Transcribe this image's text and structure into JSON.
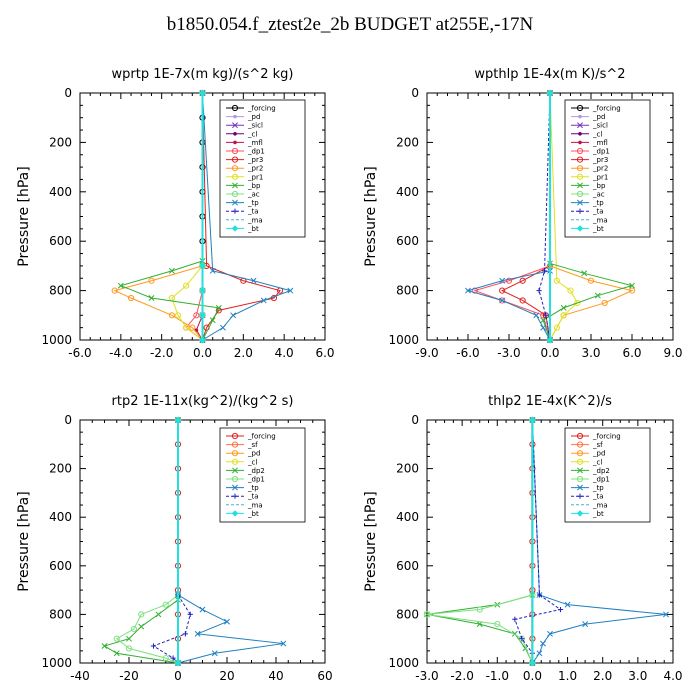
{
  "title": "b1850.054.f_ztest2e_2b  BUDGET at255E,-17N",
  "chart_data": [
    {
      "type": "line",
      "title": "wprtp  1E-7x(m kg)/(s^2 kg)",
      "ylabel": "Pressure [hPa]",
      "xlim": [
        -6,
        6
      ],
      "ylim": [
        1000,
        0
      ],
      "xticks": [
        "-6.0",
        "-4.0",
        "-2.0",
        "0.0",
        "2.0",
        "4.0",
        "6.0"
      ],
      "yticks": [
        "0",
        "200",
        "400",
        "600",
        "800",
        "1000"
      ],
      "series": [
        {
          "name": "_forcing",
          "color": "#000000",
          "marker": "circle",
          "y": [
            0,
            100,
            200,
            300,
            400,
            500,
            600,
            700,
            800,
            900,
            1000
          ],
          "x": [
            0,
            0,
            0,
            0,
            0,
            0,
            0,
            0,
            0,
            0,
            0
          ]
        },
        {
          "name": "_pd",
          "color": "#b89ae0",
          "marker": "dot",
          "y": [
            0,
            700,
            800,
            900,
            1000
          ],
          "x": [
            0,
            0,
            0,
            0,
            0
          ]
        },
        {
          "name": "_sicl",
          "color": "#7030c0",
          "marker": "x",
          "y": [
            0,
            700,
            800,
            900,
            1000
          ],
          "x": [
            0,
            0,
            0,
            0,
            0
          ]
        },
        {
          "name": "_cl",
          "color": "#6a007a",
          "marker": "dot",
          "y": [
            0,
            700,
            800,
            900,
            1000
          ],
          "x": [
            0,
            0,
            0,
            0,
            0
          ]
        },
        {
          "name": "_mfl",
          "color": "#c0104a",
          "marker": "dot",
          "y": [
            0,
            700,
            800,
            900,
            960,
            1000
          ],
          "x": [
            0,
            0,
            0,
            0,
            -0.3,
            0
          ]
        },
        {
          "name": "_dp1",
          "color": "#ff5060",
          "marker": "circle",
          "y": [
            0,
            700,
            800,
            900,
            950,
            1000
          ],
          "x": [
            0,
            0,
            0,
            -0.3,
            -0.8,
            0
          ]
        },
        {
          "name": "_pr3",
          "color": "#e02020",
          "marker": "circle",
          "y": [
            0,
            700,
            760,
            800,
            830,
            880,
            950,
            1000
          ],
          "x": [
            0,
            0.2,
            2.0,
            3.8,
            3.5,
            0.8,
            0.2,
            0
          ]
        },
        {
          "name": "_pr2",
          "color": "#ff9a20",
          "marker": "circle",
          "y": [
            0,
            700,
            760,
            800,
            830,
            900,
            950,
            1000
          ],
          "x": [
            0,
            0,
            -2.5,
            -4.3,
            -3.5,
            -1.5,
            -0.5,
            0
          ]
        },
        {
          "name": "_pr1",
          "color": "#e0e020",
          "marker": "circle",
          "y": [
            0,
            700,
            780,
            830,
            900,
            950,
            1000
          ],
          "x": [
            0,
            0,
            -0.8,
            -1.5,
            -1.2,
            -0.8,
            0
          ]
        },
        {
          "name": "_bp",
          "color": "#30b030",
          "marker": "x",
          "y": [
            0,
            680,
            720,
            780,
            830,
            870,
            920,
            1000
          ],
          "x": [
            0,
            0,
            -1.5,
            -4.0,
            -2.5,
            0.8,
            0.5,
            0
          ]
        },
        {
          "name": "_ac",
          "color": "#80e080",
          "marker": "circle",
          "y": [
            0,
            700,
            800,
            900,
            1000
          ],
          "x": [
            0,
            0,
            0,
            0,
            0
          ]
        },
        {
          "name": "_tp",
          "color": "#2080c0",
          "marker": "x",
          "y": [
            0,
            720,
            760,
            800,
            840,
            900,
            950,
            1000
          ],
          "x": [
            0,
            0.5,
            2.5,
            4.3,
            3.0,
            1.5,
            1.0,
            0
          ]
        },
        {
          "name": "_ta",
          "color": "#2020c0",
          "marker": "plus",
          "y": [
            0,
            700,
            800,
            900,
            1000
          ],
          "x": [
            0,
            0,
            0,
            0,
            0
          ]
        },
        {
          "name": "_ma",
          "color": "#4ab0d0",
          "marker": "none",
          "y": [
            0,
            700,
            800,
            900,
            1000
          ],
          "x": [
            0,
            0,
            0,
            0,
            0
          ]
        },
        {
          "name": "_bt",
          "color": "#20e0e0",
          "marker": "diamond",
          "y": [
            0,
            700,
            800,
            900,
            1000
          ],
          "x": [
            0,
            0,
            0,
            0,
            0
          ]
        }
      ]
    },
    {
      "type": "line",
      "title": "wpthlp  1E-4x(m K)/s^2",
      "ylabel": "Pressure [hPa]",
      "xlim": [
        -9,
        9
      ],
      "ylim": [
        1000,
        0
      ],
      "xticks": [
        "-9.0",
        "-6.0",
        "-3.0",
        "0.0",
        "3.0",
        "6.0",
        "9.0"
      ],
      "yticks": [
        "0",
        "200",
        "400",
        "600",
        "800",
        "1000"
      ],
      "series": [
        {
          "name": "_forcing",
          "color": "#000000",
          "marker": "circle",
          "y": [
            0,
            1000
          ],
          "x": [
            0,
            0
          ]
        },
        {
          "name": "_pd",
          "color": "#b89ae0",
          "marker": "dot",
          "y": [
            0,
            1000
          ],
          "x": [
            0,
            0
          ]
        },
        {
          "name": "_sicl",
          "color": "#7030c0",
          "marker": "x",
          "y": [
            0,
            1000
          ],
          "x": [
            0,
            0
          ]
        },
        {
          "name": "_cl",
          "color": "#6a007a",
          "marker": "dot",
          "y": [
            0,
            1000
          ],
          "x": [
            0,
            0
          ]
        },
        {
          "name": "_mfl",
          "color": "#c0104a",
          "marker": "dot",
          "y": [
            0,
            1000
          ],
          "x": [
            0,
            0
          ]
        },
        {
          "name": "_dp1",
          "color": "#ff5060",
          "marker": "circle",
          "y": [
            0,
            700,
            760,
            800,
            840,
            900,
            1000
          ],
          "x": [
            0,
            0,
            -3.0,
            -5.5,
            -3.5,
            -0.5,
            0
          ]
        },
        {
          "name": "_pr3",
          "color": "#e02020",
          "marker": "circle",
          "y": [
            0,
            700,
            760,
            800,
            840,
            900,
            1000
          ],
          "x": [
            0,
            0,
            -2.0,
            -3.5,
            -2.0,
            -0.3,
            0
          ]
        },
        {
          "name": "_pr2",
          "color": "#ff9a20",
          "marker": "circle",
          "y": [
            0,
            700,
            760,
            800,
            850,
            900,
            1000
          ],
          "x": [
            0,
            0,
            3.0,
            6.0,
            4.0,
            1.0,
            0
          ]
        },
        {
          "name": "_pr1",
          "color": "#e0e020",
          "marker": "circle",
          "y": [
            0,
            760,
            800,
            850,
            900,
            950,
            1000
          ],
          "x": [
            0,
            0.5,
            1.5,
            2.0,
            1.0,
            0.5,
            0
          ]
        },
        {
          "name": "_bp",
          "color": "#30b030",
          "marker": "x",
          "y": [
            0,
            690,
            730,
            780,
            820,
            870,
            920,
            1000
          ],
          "x": [
            0,
            0,
            2.5,
            6.0,
            3.5,
            1.0,
            -0.5,
            0
          ]
        },
        {
          "name": "_ac",
          "color": "#80e080",
          "marker": "circle",
          "y": [
            0,
            1000
          ],
          "x": [
            0,
            0
          ]
        },
        {
          "name": "_tp",
          "color": "#2080c0",
          "marker": "x",
          "y": [
            0,
            720,
            760,
            800,
            840,
            900,
            950,
            1000
          ],
          "x": [
            0,
            0,
            -3.5,
            -6.0,
            -3.5,
            -1.0,
            -0.5,
            0
          ]
        },
        {
          "name": "_ta",
          "color": "#2020c0",
          "marker": "plus",
          "y": [
            0,
            720,
            800,
            900,
            1000
          ],
          "x": [
            0,
            -0.4,
            -0.8,
            -0.3,
            0
          ]
        },
        {
          "name": "_ma",
          "color": "#4ab0d0",
          "marker": "none",
          "y": [
            0,
            1000
          ],
          "x": [
            0,
            0
          ]
        },
        {
          "name": "_bt",
          "color": "#20e0e0",
          "marker": "diamond",
          "y": [
            0,
            1000
          ],
          "x": [
            0,
            0
          ]
        }
      ]
    },
    {
      "type": "line",
      "title": "rtp2  1E-11x(kg^2)/(kg^2 s)",
      "ylabel": "Pressure [hPa]",
      "xlim": [
        -40,
        60
      ],
      "ylim": [
        1000,
        0
      ],
      "xticks": [
        "-40",
        "-20",
        "0",
        "20",
        "40",
        "60"
      ],
      "yticks": [
        "0",
        "200",
        "400",
        "600",
        "800",
        "1000"
      ],
      "series": [
        {
          "name": "_forcing",
          "color": "#e02020",
          "marker": "circle",
          "y": [
            0,
            100,
            200,
            300,
            400,
            500,
            600,
            700,
            800,
            900,
            1000
          ],
          "x": [
            0,
            0,
            0,
            0,
            0,
            0,
            0,
            0,
            0,
            0,
            0
          ]
        },
        {
          "name": "_sf",
          "color": "#ff7040",
          "marker": "circle",
          "y": [
            0,
            1000
          ],
          "x": [
            0,
            0
          ]
        },
        {
          "name": "_pd",
          "color": "#ff9a20",
          "marker": "circle",
          "y": [
            0,
            1000
          ],
          "x": [
            0,
            0
          ]
        },
        {
          "name": "_cl",
          "color": "#e0e020",
          "marker": "circle",
          "y": [
            0,
            1000
          ],
          "x": [
            0,
            0
          ]
        },
        {
          "name": "_dp2",
          "color": "#30b030",
          "marker": "x",
          "y": [
            0,
            740,
            800,
            850,
            900,
            930,
            960,
            1000
          ],
          "x": [
            0,
            0,
            -8,
            -15,
            -20,
            -30,
            -25,
            0
          ]
        },
        {
          "name": "_dp1",
          "color": "#80e080",
          "marker": "circle",
          "y": [
            0,
            720,
            760,
            800,
            860,
            900,
            940,
            980,
            1000
          ],
          "x": [
            0,
            0,
            -5,
            -15,
            -18,
            -25,
            -20,
            -5,
            0
          ]
        },
        {
          "name": "_tp",
          "color": "#2080c0",
          "marker": "x",
          "y": [
            0,
            720,
            780,
            830,
            880,
            920,
            960,
            1000
          ],
          "x": [
            0,
            0,
            10,
            20,
            8,
            43,
            15,
            0
          ]
        },
        {
          "name": "_ta",
          "color": "#2020c0",
          "marker": "plus",
          "y": [
            0,
            720,
            800,
            880,
            930,
            980,
            1000
          ],
          "x": [
            0,
            0,
            5,
            3,
            -10,
            -2,
            0
          ]
        },
        {
          "name": "_ma",
          "color": "#4ab0d0",
          "marker": "none",
          "y": [
            0,
            1000
          ],
          "x": [
            0,
            0
          ]
        },
        {
          "name": "_bt",
          "color": "#20e0e0",
          "marker": "diamond",
          "y": [
            0,
            1000
          ],
          "x": [
            0,
            0
          ]
        }
      ]
    },
    {
      "type": "line",
      "title": "thlp2  1E-4x(K^2)/s",
      "ylabel": "Pressure [hPa]",
      "xlim": [
        -3,
        4
      ],
      "ylim": [
        1000,
        0
      ],
      "xticks": [
        "-3.0",
        "-2.0",
        "-1.0",
        "0.0",
        "1.0",
        "2.0",
        "3.0",
        "4.0"
      ],
      "yticks": [
        "0",
        "200",
        "400",
        "600",
        "800",
        "1000"
      ],
      "series": [
        {
          "name": "_forcing",
          "color": "#e02020",
          "marker": "circle",
          "y": [
            0,
            100,
            200,
            300,
            400,
            500,
            600,
            700,
            800,
            900,
            1000
          ],
          "x": [
            0,
            0,
            0,
            0,
            0,
            0,
            0,
            0,
            0,
            0,
            0
          ]
        },
        {
          "name": "_sf",
          "color": "#ff7040",
          "marker": "circle",
          "y": [
            0,
            1000
          ],
          "x": [
            0,
            0
          ]
        },
        {
          "name": "_pd",
          "color": "#ff9a20",
          "marker": "circle",
          "y": [
            0,
            1000
          ],
          "x": [
            0,
            0
          ]
        },
        {
          "name": "_cl",
          "color": "#e0e020",
          "marker": "circle",
          "y": [
            0,
            1000
          ],
          "x": [
            0,
            0
          ]
        },
        {
          "name": "_dp2",
          "color": "#30b030",
          "marker": "x",
          "y": [
            0,
            720,
            760,
            800,
            840,
            880,
            940,
            1000
          ],
          "x": [
            0,
            0,
            -1.0,
            -3.0,
            -1.5,
            -0.5,
            -0.2,
            0
          ]
        },
        {
          "name": "_dp1",
          "color": "#80e080",
          "marker": "circle",
          "y": [
            0,
            720,
            780,
            800,
            840,
            900,
            1000
          ],
          "x": [
            0,
            0,
            -1.5,
            -3.0,
            -1.0,
            -0.3,
            0
          ]
        },
        {
          "name": "_tp",
          "color": "#2080c0",
          "marker": "x",
          "y": [
            0,
            720,
            760,
            800,
            840,
            880,
            920,
            960,
            1000
          ],
          "x": [
            0,
            0.2,
            1.0,
            3.8,
            1.5,
            0.5,
            0.3,
            0.2,
            0
          ]
        },
        {
          "name": "_ta",
          "color": "#2020c0",
          "marker": "plus",
          "y": [
            0,
            720,
            780,
            820,
            900,
            960,
            1000
          ],
          "x": [
            0,
            0.2,
            0.8,
            -0.5,
            -0.3,
            0,
            0
          ]
        },
        {
          "name": "_ma",
          "color": "#4ab0d0",
          "marker": "none",
          "y": [
            0,
            1000
          ],
          "x": [
            0,
            0
          ]
        },
        {
          "name": "_bt",
          "color": "#20e0e0",
          "marker": "diamond",
          "y": [
            0,
            1000
          ],
          "x": [
            0,
            0
          ]
        }
      ]
    }
  ]
}
